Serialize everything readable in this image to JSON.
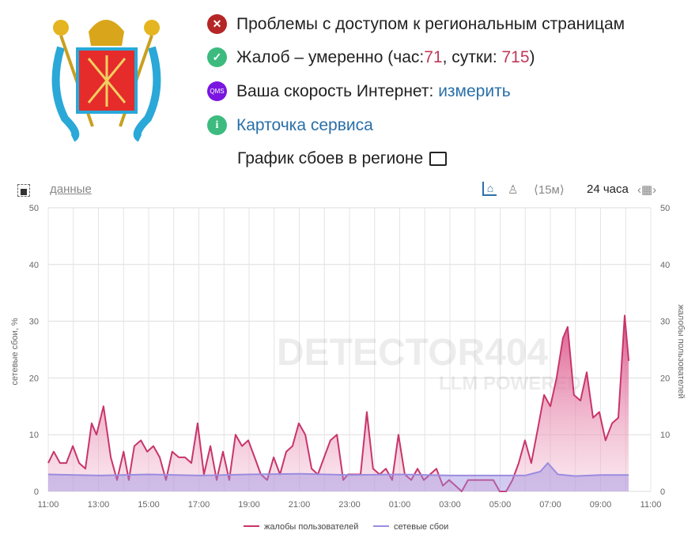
{
  "status": {
    "problem": "Проблемы с доступом к региональным страницам",
    "complaints_prefix": "Жалоб – умеренно (час: ",
    "hour": "71",
    "sep": ", сутки: ",
    "day": "715",
    "suffix": ")",
    "speed_label": "Ваша скорость Интернет: ",
    "speed_link": "измерить",
    "qms": "QMS",
    "card": "Карточка сервиса",
    "graph_title": "График сбоев в регионе"
  },
  "toolbar": {
    "data_link": "данные",
    "interval": "⟨15м⟩",
    "period": "24 часа"
  },
  "watermark": {
    "title": "DETECTOR404",
    "sub": "LLM POWERED"
  },
  "colors": {
    "complaints": "#c8356a",
    "network": "#9b8ce0"
  },
  "chart_data": {
    "type": "area",
    "xlabel": "",
    "ylabel": "сетевые сбои, %",
    "ylabel_right": "жалобы пользователей",
    "ylim": [
      0,
      50
    ],
    "yticks": [
      "0",
      "10",
      "20",
      "30",
      "40",
      "50"
    ],
    "xlim": [
      0,
      24
    ],
    "xticks": [
      "11:00",
      "13:00",
      "15:00",
      "17:00",
      "19:00",
      "21:00",
      "23:00",
      "01:00",
      "03:00",
      "05:00",
      "07:00",
      "09:00",
      "11:00"
    ],
    "grid": true,
    "legend": "bottom",
    "series": [
      {
        "name": "жалобы пользователей",
        "x_hours": [
          0,
          0.22,
          0.47,
          0.72,
          0.98,
          1.23,
          1.48,
          1.73,
          1.92,
          2.2,
          2.49,
          2.74,
          3.0,
          3.21,
          3.43,
          3.69,
          3.94,
          4.19,
          4.44,
          4.69,
          4.94,
          5.2,
          5.45,
          5.7,
          5.95,
          6.2,
          6.46,
          6.71,
          6.96,
          7.21,
          7.46,
          7.72,
          7.97,
          8.22,
          8.47,
          8.72,
          8.98,
          9.23,
          9.48,
          9.73,
          9.98,
          10.24,
          10.49,
          10.74,
          10.99,
          11.24,
          11.5,
          11.75,
          11.94,
          12.19,
          12.44,
          12.69,
          12.94,
          13.2,
          13.45,
          13.7,
          13.95,
          14.2,
          14.46,
          14.71,
          14.96,
          15.21,
          15.46,
          15.72,
          15.97,
          16.22,
          16.47,
          16.72,
          16.98,
          17.23,
          17.48,
          17.73,
          17.98,
          18.24,
          18.49,
          18.74,
          18.99,
          19.24,
          19.5,
          19.75,
          20.0,
          20.25,
          20.5,
          20.69,
          20.94,
          21.2,
          21.45,
          21.7,
          21.95,
          22.2,
          22.46,
          22.71,
          22.96,
          23.12
        ],
        "values": [
          5,
          7,
          5,
          5,
          8,
          5,
          4,
          12,
          10,
          15,
          6,
          2,
          7,
          2,
          8,
          9,
          7,
          8,
          6,
          2,
          7,
          6,
          6,
          5,
          12,
          3,
          8,
          2,
          7,
          2,
          10,
          8,
          9,
          6,
          3,
          2,
          6,
          3,
          7,
          8,
          12,
          10,
          4,
          3,
          6,
          9,
          10,
          2,
          3,
          3,
          3,
          14,
          4,
          3,
          4,
          2,
          10,
          3,
          2,
          4,
          2,
          3,
          4,
          1,
          2,
          1,
          0,
          2,
          2,
          2,
          2,
          2,
          0,
          0,
          2,
          5,
          9,
          5,
          11,
          17,
          15,
          20,
          27,
          29,
          17,
          16,
          21,
          13,
          14,
          9,
          12,
          13,
          31,
          23
        ]
      },
      {
        "name": "сетевые сбои",
        "x_hours": [
          0,
          2,
          4,
          6,
          8,
          10,
          12,
          14,
          16,
          18,
          19,
          19.6,
          19.9,
          20.3,
          21,
          22,
          23.12
        ],
        "values": [
          3,
          2.8,
          3,
          2.8,
          3,
          3.1,
          2.9,
          3,
          2.8,
          2.8,
          2.8,
          3.5,
          5,
          3,
          2.7,
          2.9,
          2.9
        ]
      }
    ]
  }
}
